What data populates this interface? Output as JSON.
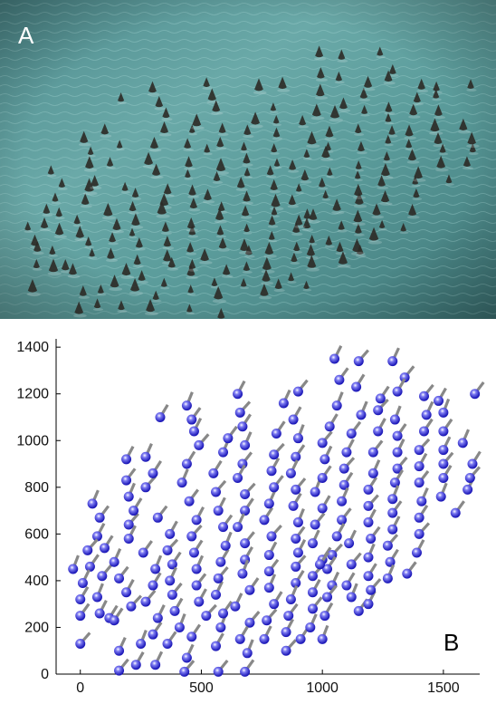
{
  "panel_a": {
    "label": "A",
    "description_icon": "aerial-photo-flock-on-water",
    "colors": {
      "water": "#5f9ea0",
      "water_light": "#7ab6b5",
      "bird": "#2c2a26"
    }
  },
  "panel_b": {
    "label": "B",
    "colors": {
      "point": "#1c18b8",
      "point_highlight": "#7d7bf2",
      "heading": "#888888",
      "axis": "#000000"
    }
  },
  "chart_data": {
    "type": "scatter",
    "title": "",
    "xlabel": "",
    "ylabel": "",
    "xlim": [
      -100,
      1650
    ],
    "ylim": [
      0,
      1420
    ],
    "x_ticks": [
      0,
      500,
      1000,
      1500
    ],
    "y_ticks": [
      0,
      200,
      400,
      600,
      800,
      1000,
      1200,
      1400
    ],
    "x_tick_labels": [
      "0",
      "500",
      "1000",
      "1500"
    ],
    "y_tick_labels": [
      "0",
      "200",
      "400",
      "600",
      "800",
      "1000",
      "1200",
      "1400"
    ],
    "grid": false,
    "marker": "circle with heading line",
    "heading_note": "each bird drawn as a circle with a short grey line indicating heading",
    "series": [
      {
        "points": [
          [
            -30,
            450
          ],
          [
            40,
            460
          ],
          [
            10,
            390
          ],
          [
            90,
            420
          ],
          [
            0,
            320
          ],
          [
            70,
            330
          ],
          [
            0,
            250
          ],
          [
            80,
            260
          ],
          [
            0,
            130
          ],
          [
            120,
            240
          ],
          [
            50,
            730
          ],
          [
            80,
            670
          ],
          [
            70,
            590
          ],
          [
            30,
            530
          ],
          [
            100,
            540
          ],
          [
            140,
            480
          ],
          [
            160,
            410
          ],
          [
            190,
            350
          ],
          [
            210,
            290
          ],
          [
            140,
            230
          ],
          [
            160,
            100
          ],
          [
            160,
            15
          ],
          [
            230,
            40
          ],
          [
            250,
            130
          ],
          [
            300,
            170
          ],
          [
            320,
            240
          ],
          [
            270,
            310
          ],
          [
            300,
            380
          ],
          [
            310,
            450
          ],
          [
            260,
            520
          ],
          [
            200,
            580
          ],
          [
            200,
            640
          ],
          [
            220,
            700
          ],
          [
            200,
            760
          ],
          [
            190,
            830
          ],
          [
            190,
            920
          ],
          [
            270,
            800
          ],
          [
            300,
            860
          ],
          [
            270,
            930
          ],
          [
            320,
            670
          ],
          [
            370,
            600
          ],
          [
            360,
            530
          ],
          [
            380,
            470
          ],
          [
            370,
            400
          ],
          [
            380,
            340
          ],
          [
            390,
            270
          ],
          [
            410,
            200
          ],
          [
            360,
            130
          ],
          [
            310,
            40
          ],
          [
            430,
            10
          ],
          [
            330,
            1100
          ],
          [
            440,
            1150
          ],
          [
            460,
            1090
          ],
          [
            470,
            1040
          ],
          [
            490,
            980
          ],
          [
            440,
            900
          ],
          [
            420,
            820
          ],
          [
            450,
            740
          ],
          [
            480,
            660
          ],
          [
            460,
            590
          ],
          [
            470,
            520
          ],
          [
            480,
            450
          ],
          [
            480,
            380
          ],
          [
            490,
            310
          ],
          [
            520,
            250
          ],
          [
            460,
            160
          ],
          [
            440,
            70
          ],
          [
            570,
            10
          ],
          [
            560,
            120
          ],
          [
            580,
            200
          ],
          [
            590,
            260
          ],
          [
            560,
            340
          ],
          [
            570,
            410
          ],
          [
            580,
            480
          ],
          [
            600,
            550
          ],
          [
            590,
            630
          ],
          [
            570,
            700
          ],
          [
            560,
            780
          ],
          [
            550,
            860
          ],
          [
            590,
            950
          ],
          [
            610,
            1010
          ],
          [
            650,
            1200
          ],
          [
            660,
            1120
          ],
          [
            670,
            1060
          ],
          [
            680,
            980
          ],
          [
            670,
            900
          ],
          [
            650,
            840
          ],
          [
            680,
            770
          ],
          [
            680,
            700
          ],
          [
            650,
            630
          ],
          [
            680,
            560
          ],
          [
            680,
            490
          ],
          [
            670,
            430
          ],
          [
            700,
            360
          ],
          [
            640,
            290
          ],
          [
            700,
            220
          ],
          [
            660,
            150
          ],
          [
            690,
            90
          ],
          [
            680,
            10
          ],
          [
            760,
            150
          ],
          [
            770,
            230
          ],
          [
            800,
            300
          ],
          [
            780,
            370
          ],
          [
            780,
            440
          ],
          [
            780,
            510
          ],
          [
            790,
            590
          ],
          [
            760,
            660
          ],
          [
            780,
            730
          ],
          [
            800,
            800
          ],
          [
            790,
            870
          ],
          [
            800,
            940
          ],
          [
            810,
            1030
          ],
          [
            840,
            1160
          ],
          [
            900,
            1210
          ],
          [
            880,
            1090
          ],
          [
            900,
            1010
          ],
          [
            890,
            930
          ],
          [
            870,
            860
          ],
          [
            890,
            790
          ],
          [
            880,
            720
          ],
          [
            900,
            650
          ],
          [
            890,
            580
          ],
          [
            900,
            520
          ],
          [
            890,
            460
          ],
          [
            890,
            390
          ],
          [
            870,
            320
          ],
          [
            860,
            250
          ],
          [
            850,
            180
          ],
          [
            850,
            100
          ],
          [
            910,
            150
          ],
          [
            950,
            200
          ],
          [
            960,
            280
          ],
          [
            960,
            350
          ],
          [
            960,
            420
          ],
          [
            1000,
            490
          ],
          [
            960,
            560
          ],
          [
            970,
            640
          ],
          [
            1000,
            710
          ],
          [
            970,
            780
          ],
          [
            1000,
            840
          ],
          [
            1010,
            920
          ],
          [
            1000,
            990
          ],
          [
            1030,
            1060
          ],
          [
            1060,
            1150
          ],
          [
            1070,
            1260
          ],
          [
            1050,
            1350
          ],
          [
            1150,
            1340
          ],
          [
            1140,
            1230
          ],
          [
            1160,
            1110
          ],
          [
            1120,
            1030
          ],
          [
            1100,
            950
          ],
          [
            1090,
            880
          ],
          [
            1090,
            810
          ],
          [
            1080,
            740
          ],
          [
            1080,
            660
          ],
          [
            1060,
            590
          ],
          [
            1040,
            510
          ],
          [
            1020,
            450
          ],
          [
            1040,
            380
          ],
          [
            1020,
            330
          ],
          [
            1010,
            250
          ],
          [
            1000,
            150
          ],
          [
            990,
            470
          ],
          [
            1110,
            560
          ],
          [
            1120,
            470
          ],
          [
            1100,
            380
          ],
          [
            1120,
            330
          ],
          [
            1150,
            270
          ],
          [
            1190,
            300
          ],
          [
            1200,
            360
          ],
          [
            1190,
            420
          ],
          [
            1190,
            500
          ],
          [
            1200,
            580
          ],
          [
            1190,
            650
          ],
          [
            1190,
            720
          ],
          [
            1190,
            790
          ],
          [
            1210,
            860
          ],
          [
            1210,
            950
          ],
          [
            1230,
            1040
          ],
          [
            1230,
            1130
          ],
          [
            1240,
            1180
          ],
          [
            1290,
            1340
          ],
          [
            1340,
            1270
          ],
          [
            1310,
            1210
          ],
          [
            1300,
            1090
          ],
          [
            1310,
            1020
          ],
          [
            1310,
            950
          ],
          [
            1310,
            880
          ],
          [
            1300,
            820
          ],
          [
            1290,
            750
          ],
          [
            1290,
            690
          ],
          [
            1290,
            620
          ],
          [
            1270,
            550
          ],
          [
            1280,
            480
          ],
          [
            1270,
            410
          ],
          [
            1350,
            430
          ],
          [
            1390,
            520
          ],
          [
            1400,
            600
          ],
          [
            1400,
            670
          ],
          [
            1410,
            740
          ],
          [
            1400,
            820
          ],
          [
            1400,
            890
          ],
          [
            1400,
            960
          ],
          [
            1420,
            1040
          ],
          [
            1430,
            1110
          ],
          [
            1420,
            1190
          ],
          [
            1480,
            1170
          ],
          [
            1500,
            1120
          ],
          [
            1500,
            1040
          ],
          [
            1500,
            960
          ],
          [
            1500,
            900
          ],
          [
            1500,
            840
          ],
          [
            1490,
            760
          ],
          [
            1550,
            690
          ],
          [
            1600,
            790
          ],
          [
            1610,
            840
          ],
          [
            1620,
            900
          ],
          [
            1580,
            990
          ],
          [
            1630,
            1200
          ]
        ]
      }
    ]
  }
}
